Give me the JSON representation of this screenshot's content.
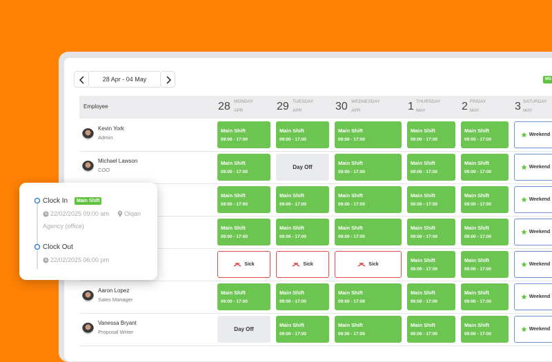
{
  "date_range": "28 Apr - 04 May",
  "badge": "MS",
  "table": {
    "employee_header": "Employee",
    "days": [
      {
        "num": "28",
        "weekday": "MONDAY",
        "month": "APR"
      },
      {
        "num": "29",
        "weekday": "TUESDAY",
        "month": "APR"
      },
      {
        "num": "30",
        "weekday": "WEDNESDAY",
        "month": "APR"
      },
      {
        "num": "1",
        "weekday": "THURSDAY",
        "month": "MAY"
      },
      {
        "num": "2",
        "weekday": "FRIDAY",
        "month": "MAY"
      },
      {
        "num": "3",
        "weekday": "SATURDAY",
        "month": "MAY"
      }
    ],
    "rows": [
      {
        "name": "Kevin York",
        "role": "Admin",
        "cells": [
          {
            "style": "shift",
            "label": "Main Shift",
            "time": "09:00 - 17:00"
          },
          {
            "style": "shift",
            "label": "Main Shift",
            "time": "09:00 - 17:00"
          },
          {
            "style": "shift",
            "label": "Main Shift",
            "time": "09:00 - 17:00"
          },
          {
            "style": "shift",
            "label": "Main Shift",
            "time": "09:00 - 17:00"
          },
          {
            "style": "shift",
            "label": "Main Shift",
            "time": "09:00 - 17:00"
          },
          {
            "style": "weekend",
            "label": "Weekend"
          }
        ]
      },
      {
        "name": "Michael Lawson",
        "role": "COO",
        "cells": [
          {
            "style": "shift",
            "label": "Main Shift",
            "time": "09:00 - 17:00"
          },
          {
            "style": "off",
            "label": "Day Off"
          },
          {
            "style": "shift",
            "label": "Main Shift",
            "time": "09:00 - 17:00"
          },
          {
            "style": "shift",
            "label": "Main Shift",
            "time": "09:00 - 17:00"
          },
          {
            "style": "shift",
            "label": "Main Shift",
            "time": "09:00 - 17:00"
          },
          {
            "style": "weekend",
            "label": "Weekend"
          }
        ]
      },
      {
        "cells": [
          {
            "style": "shift",
            "label": "Main Shift",
            "time": "09:00 - 17:00"
          },
          {
            "style": "shift",
            "label": "Main Shift",
            "time": "09:00 - 17:00"
          },
          {
            "style": "shift",
            "label": "Main Shift",
            "time": "09:00 - 17:00"
          },
          {
            "style": "shift",
            "label": "Main Shift",
            "time": "09:00 - 17:00"
          },
          {
            "style": "shift",
            "label": "Main Shift",
            "time": "09:00 - 17:00"
          },
          {
            "style": "weekend",
            "label": "Weekend"
          }
        ]
      },
      {
        "cells": [
          {
            "style": "shift",
            "label": "Main Shift",
            "time": "09:00 - 17:00"
          },
          {
            "style": "shift",
            "label": "Main Shift",
            "time": "09:00 - 17:00"
          },
          {
            "style": "shift",
            "label": "Main Shift",
            "time": "09:00 - 17:00"
          },
          {
            "style": "shift",
            "label": "Main Shift",
            "time": "09:00 - 17:00"
          },
          {
            "style": "shift",
            "label": "Main Shift",
            "time": "09:00 - 17:00"
          },
          {
            "style": "weekend",
            "label": "Weekend"
          }
        ]
      },
      {
        "cells": [
          {
            "style": "sick",
            "label": "Sick"
          },
          {
            "style": "sick",
            "label": "Sick"
          },
          {
            "style": "sick",
            "label": "Sick"
          },
          {
            "style": "shift",
            "label": "Main Shift",
            "time": "09:00 - 17:00"
          },
          {
            "style": "shift",
            "label": "Main Shift",
            "time": "09:00 - 17:00"
          },
          {
            "style": "weekend",
            "label": "Weekend"
          }
        ]
      },
      {
        "name": "Aaron Lopez",
        "role": "Sales Manager",
        "cells": [
          {
            "style": "shift",
            "label": "Main Shift",
            "time": "09:00 - 17:00"
          },
          {
            "style": "shift",
            "label": "Main Shift",
            "time": "09:00 - 17:00"
          },
          {
            "style": "shift",
            "label": "Main Shift",
            "time": "09:00 - 17:00"
          },
          {
            "style": "shift",
            "label": "Main Shift",
            "time": "09:00 - 17:00"
          },
          {
            "style": "shift",
            "label": "Main Shift",
            "time": "09:00 - 17:00"
          },
          {
            "style": "weekend",
            "label": "Weekend"
          }
        ]
      },
      {
        "name": "Vanessa Bryant",
        "role": "Proposal Writer",
        "cells": [
          {
            "style": "off",
            "label": "Day Off"
          },
          {
            "style": "shift",
            "label": "Main Shift",
            "time": "09:00 - 17:00"
          },
          {
            "style": "shift",
            "label": "Main Shift",
            "time": "09:00 - 17:00"
          },
          {
            "style": "shift",
            "label": "Main Shift",
            "time": "09:00 - 17:00"
          },
          {
            "style": "shift",
            "label": "Main Shift",
            "time": "09:00 - 17:00"
          },
          {
            "style": "weekend",
            "label": "Weekend"
          }
        ]
      }
    ]
  },
  "popup": {
    "clock_in": {
      "label": "Clock In",
      "badge": "Main Shift",
      "time": "22/02/2025 09:00 am",
      "location": "Olqan",
      "place": "Agency (office)"
    },
    "clock_out": {
      "label": "Clock Out",
      "time": "22/02/2025 06:00 pm"
    }
  }
}
